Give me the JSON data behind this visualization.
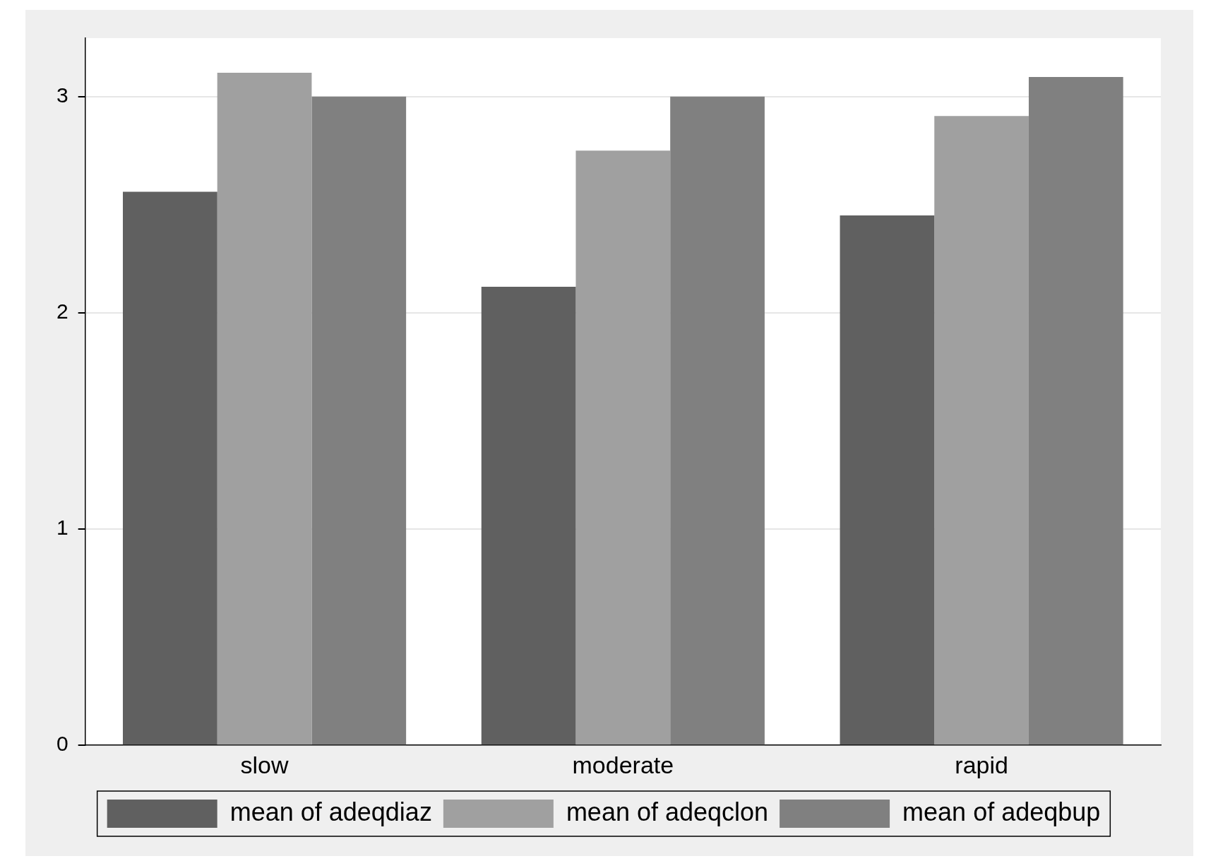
{
  "chart_data": {
    "type": "bar",
    "categories": [
      "slow",
      "moderate",
      "rapid"
    ],
    "series": [
      {
        "name": "mean of adeqdiaz",
        "color": "#606060",
        "values": [
          2.56,
          2.12,
          2.45
        ]
      },
      {
        "name": "mean of adeqclon",
        "color": "#a0a0a0",
        "values": [
          3.11,
          2.75,
          2.91
        ]
      },
      {
        "name": "mean of adeqbup",
        "color": "#808080",
        "values": [
          3.0,
          3.0,
          3.09
        ]
      }
    ],
    "ylim": [
      0,
      3.27
    ],
    "yticks": [
      0,
      1,
      2,
      3
    ],
    "grid": "y",
    "legend": "bottom"
  }
}
